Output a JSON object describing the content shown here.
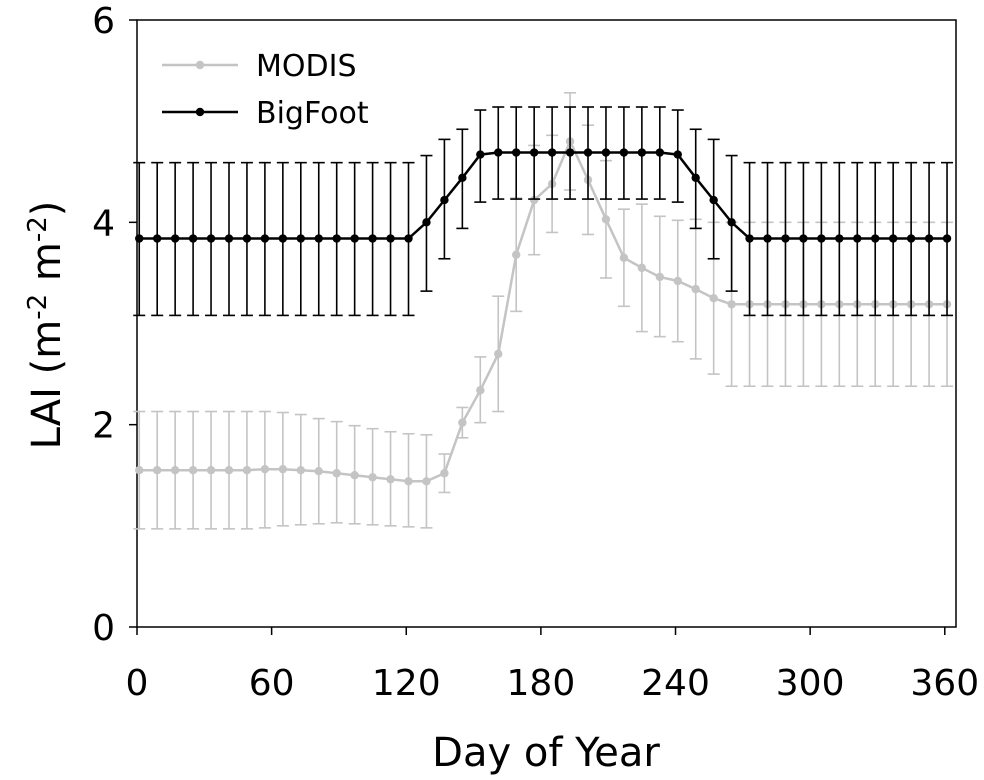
{
  "chart_data": {
    "type": "line",
    "xlabel": "Day of Year",
    "ylabel_main": "LAI (m",
    "ylabel_sup1": "-2",
    "ylabel_mid": " m",
    "ylabel_sup2": "-2",
    "ylabel_end": ")",
    "xlim": [
      0,
      365
    ],
    "ylim": [
      0,
      6
    ],
    "xticks": [
      0,
      60,
      120,
      180,
      240,
      300,
      360
    ],
    "yticks": [
      0,
      2,
      4,
      6
    ],
    "legend_position": "top-left",
    "grid": false,
    "series": [
      {
        "name": "MODIS",
        "color": "#c4c4c4",
        "x": [
          1,
          9,
          17,
          25,
          33,
          41,
          49,
          57,
          65,
          73,
          81,
          89,
          97,
          105,
          113,
          121,
          129,
          137,
          145,
          153,
          161,
          169,
          177,
          185,
          193,
          201,
          209,
          217,
          225,
          233,
          241,
          249,
          257,
          265,
          273,
          281,
          289,
          297,
          305,
          313,
          321,
          329,
          337,
          345,
          353,
          361
        ],
        "y": [
          1.55,
          1.55,
          1.55,
          1.55,
          1.55,
          1.55,
          1.55,
          1.56,
          1.56,
          1.55,
          1.54,
          1.52,
          1.5,
          1.48,
          1.46,
          1.44,
          1.44,
          1.52,
          2.02,
          2.34,
          2.7,
          3.68,
          4.22,
          4.38,
          4.8,
          4.42,
          4.03,
          3.65,
          3.55,
          3.46,
          3.42,
          3.34,
          3.25,
          3.19,
          3.19,
          3.19,
          3.19,
          3.19,
          3.19,
          3.19,
          3.19,
          3.19,
          3.19,
          3.19,
          3.19,
          3.19
        ],
        "err_low": [
          0.97,
          0.97,
          0.97,
          0.97,
          0.97,
          0.97,
          0.97,
          0.98,
          1.0,
          1.01,
          1.02,
          1.03,
          1.02,
          1.01,
          1.0,
          0.99,
          0.98,
          1.33,
          1.87,
          2.02,
          2.13,
          3.12,
          3.68,
          3.9,
          4.32,
          3.88,
          3.45,
          3.17,
          2.92,
          2.87,
          2.82,
          2.65,
          2.5,
          2.38,
          2.38,
          2.38,
          2.38,
          2.38,
          2.38,
          2.38,
          2.38,
          2.38,
          2.38,
          2.38,
          2.38,
          2.38
        ],
        "err_high": [
          2.13,
          2.13,
          2.13,
          2.13,
          2.13,
          2.13,
          2.13,
          2.13,
          2.12,
          2.1,
          2.06,
          2.03,
          1.99,
          1.96,
          1.93,
          1.91,
          1.9,
          1.71,
          2.17,
          2.67,
          3.27,
          4.24,
          4.76,
          4.86,
          5.28,
          4.96,
          4.61,
          4.13,
          4.18,
          4.06,
          4.02,
          4.03,
          4.0,
          4.0,
          4.0,
          4.0,
          4.0,
          4.0,
          4.0,
          4.0,
          4.0,
          4.0,
          4.0,
          4.0,
          4.0,
          4.0
        ]
      },
      {
        "name": "BigFoot",
        "color": "#000000",
        "x": [
          1,
          9,
          17,
          25,
          33,
          41,
          49,
          57,
          65,
          73,
          81,
          89,
          97,
          105,
          113,
          121,
          129,
          137,
          145,
          153,
          161,
          169,
          177,
          185,
          193,
          201,
          209,
          217,
          225,
          233,
          241,
          249,
          257,
          265,
          273,
          281,
          289,
          297,
          305,
          313,
          321,
          329,
          337,
          345,
          353,
          361
        ],
        "y": [
          3.84,
          3.84,
          3.84,
          3.84,
          3.84,
          3.84,
          3.84,
          3.84,
          3.84,
          3.84,
          3.84,
          3.84,
          3.84,
          3.84,
          3.84,
          3.84,
          4.0,
          4.22,
          4.44,
          4.67,
          4.69,
          4.69,
          4.69,
          4.69,
          4.69,
          4.69,
          4.69,
          4.69,
          4.69,
          4.69,
          4.67,
          4.44,
          4.22,
          4.0,
          3.84,
          3.84,
          3.84,
          3.84,
          3.84,
          3.84,
          3.84,
          3.84,
          3.84,
          3.84,
          3.84,
          3.84
        ],
        "err_low": [
          3.08,
          3.08,
          3.08,
          3.08,
          3.08,
          3.08,
          3.08,
          3.08,
          3.08,
          3.08,
          3.08,
          3.08,
          3.08,
          3.08,
          3.08,
          3.08,
          3.32,
          3.64,
          3.94,
          4.2,
          4.23,
          4.23,
          4.23,
          4.23,
          4.23,
          4.23,
          4.23,
          4.23,
          4.23,
          4.23,
          4.2,
          3.94,
          3.64,
          3.32,
          3.08,
          3.08,
          3.08,
          3.08,
          3.08,
          3.08,
          3.08,
          3.08,
          3.08,
          3.08,
          3.08,
          3.08
        ],
        "err_high": [
          4.59,
          4.59,
          4.59,
          4.59,
          4.59,
          4.59,
          4.59,
          4.59,
          4.59,
          4.59,
          4.59,
          4.59,
          4.59,
          4.59,
          4.59,
          4.59,
          4.66,
          4.82,
          4.92,
          5.11,
          5.14,
          5.14,
          5.14,
          5.14,
          5.14,
          5.14,
          5.14,
          5.14,
          5.14,
          5.14,
          5.11,
          4.92,
          4.82,
          4.66,
          4.59,
          4.59,
          4.59,
          4.59,
          4.59,
          4.59,
          4.59,
          4.59,
          4.59,
          4.59,
          4.59,
          4.59
        ]
      }
    ]
  }
}
